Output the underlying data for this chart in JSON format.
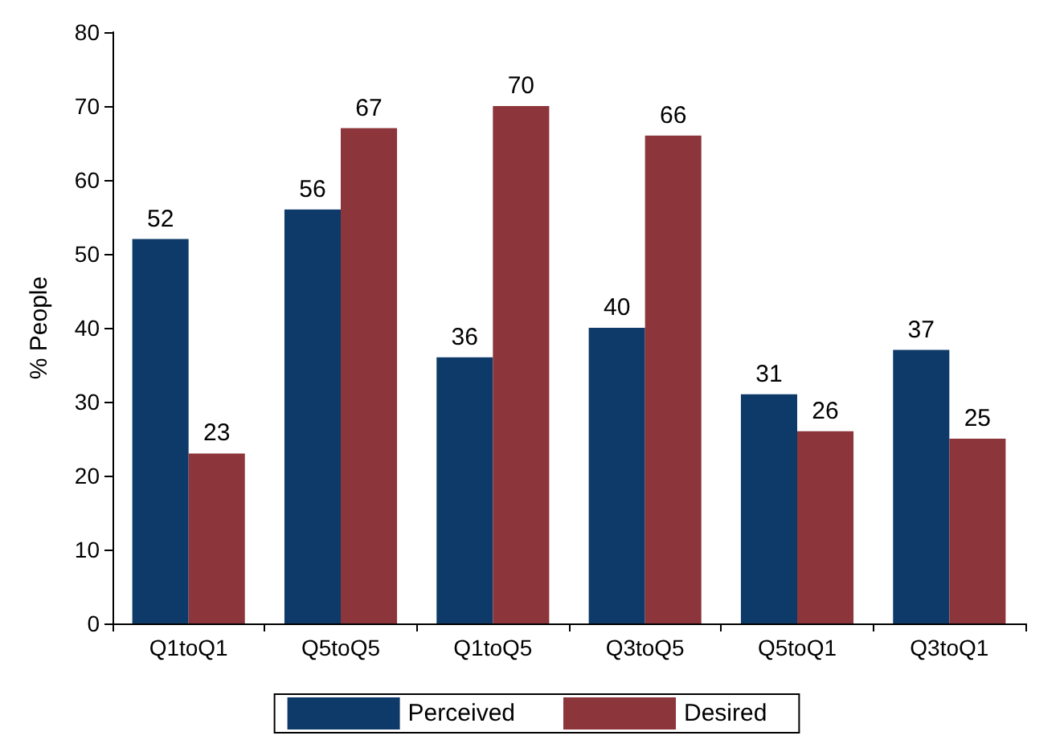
{
  "chart_data": {
    "type": "bar",
    "ylabel": "% People",
    "categories": [
      "Q1toQ1",
      "Q5toQ5",
      "Q1toQ5",
      "Q3toQ5",
      "Q5toQ1",
      "Q3toQ1"
    ],
    "series": [
      {
        "name": "Perceived",
        "color": "#0d3a69",
        "values": [
          52,
          56,
          36,
          40,
          31,
          37
        ]
      },
      {
        "name": "Desired",
        "color": "#8c353b",
        "values": [
          23,
          67,
          70,
          66,
          26,
          25
        ]
      }
    ],
    "ylim": [
      0,
      80
    ],
    "yticks": [
      0,
      10,
      20,
      30,
      40,
      50,
      60,
      70,
      80
    ],
    "grid": false,
    "legend": "bottom",
    "data_labels": true
  }
}
